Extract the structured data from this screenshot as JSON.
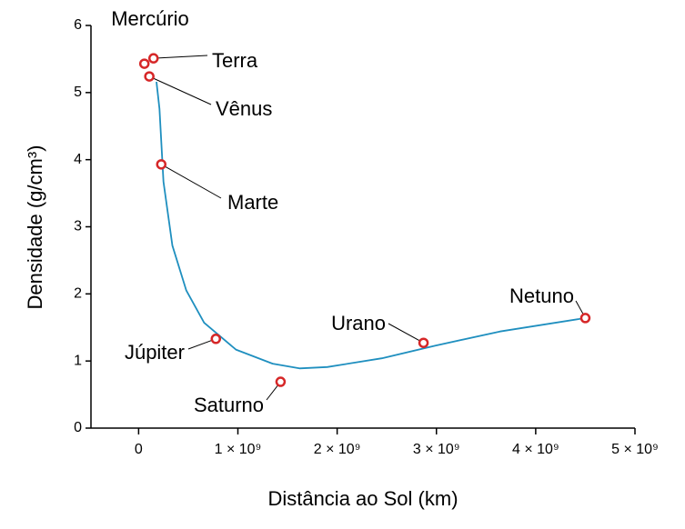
{
  "chart_data": {
    "type": "scatter",
    "x_label": "Distância ao Sol (km)",
    "y_label": "Densidade (g/cm³)",
    "categories": [
      "Mercúrio",
      "Vênus",
      "Terra",
      "Marte",
      "Júpiter",
      "Saturno",
      "Urano",
      "Netuno"
    ],
    "x": [
      58000000,
      108000000,
      150000000,
      228000000,
      778000000,
      1430000000,
      2870000000,
      4500000000
    ],
    "values": [
      5.43,
      5.24,
      5.51,
      3.93,
      1.33,
      0.69,
      1.27,
      1.64
    ],
    "color": "#d62728",
    "fit": {
      "color": "#1f8fbf",
      "x": [
        180000000,
        210000000,
        250000000,
        340000000,
        480000000,
        660000000,
        980000000,
        1350000000,
        1620000000,
        1900000000,
        2450000000,
        2990000000,
        3640000000,
        4500000000
      ],
      "values": [
        5.16,
        4.76,
        3.67,
        2.72,
        2.05,
        1.57,
        1.17,
        0.96,
        0.89,
        0.91,
        1.04,
        1.23,
        1.44,
        1.64
      ]
    },
    "xlim": [
      -480000000,
      5000000000
    ],
    "xticks": [
      0,
      {
        "value": 1000000000,
        "label": "1 × 10⁹"
      },
      {
        "value": 2000000000,
        "label": "2 × 10⁹"
      },
      {
        "value": 3000000000,
        "label": "3 × 10⁹"
      },
      {
        "value": 4000000000,
        "label": "4 × 10⁹"
      },
      {
        "value": 5000000000,
        "label": "5 × 10⁹"
      }
    ],
    "ylim": [
      0,
      6
    ],
    "yticks": [
      0,
      1,
      2,
      3,
      4,
      5,
      6
    ]
  }
}
